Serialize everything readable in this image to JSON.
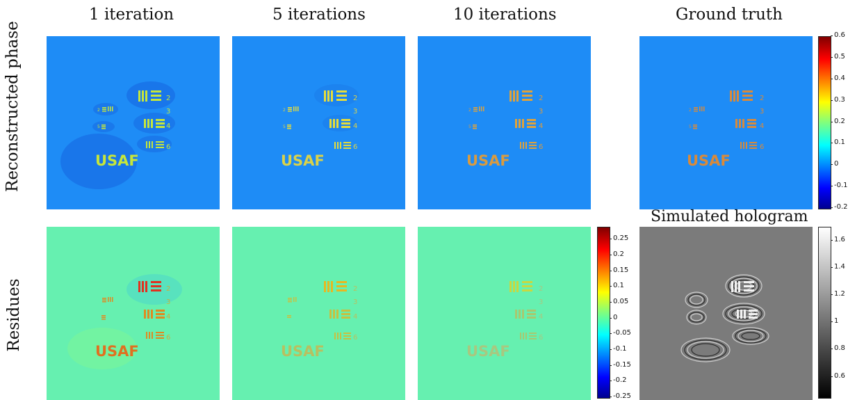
{
  "column_titles": [
    "1 iteration",
    "5 iterations",
    "10 iterations",
    "Ground truth"
  ],
  "row_labels": [
    "Reconstructed phase",
    "Residues"
  ],
  "hologram_title": "Simulated hologram",
  "target_text": "USAF",
  "target_numbers": [
    "2",
    "3",
    "4",
    "6"
  ],
  "phase_colorbar": {
    "colormap": "jet",
    "range": [
      -0.2,
      0.6
    ],
    "ticks": [
      "0.6",
      "0.5",
      "0.4",
      "0.3",
      "0.2",
      "0.1",
      "0",
      "-0.1",
      "-0.2"
    ]
  },
  "residue_colorbar": {
    "colormap": "jet",
    "range": [
      -0.25,
      0.29
    ],
    "ticks": [
      "0.25",
      "0.2",
      "0.15",
      "0.1",
      "0.05",
      "0",
      "-0.05",
      "-0.1",
      "-0.15",
      "-0.2",
      "-0.25"
    ]
  },
  "hologram_colorbar": {
    "colormap": "gray",
    "range": [
      0.45,
      1.7
    ],
    "ticks": [
      "1.6",
      "1.4",
      "1.2",
      "1",
      "0.8",
      "0.6"
    ]
  },
  "colors": {
    "phase_background": "#1e8cf6",
    "target_orange": "#d98a3a",
    "residue_background": "#66f0b0",
    "hologram_background": "#7b7b7b"
  }
}
